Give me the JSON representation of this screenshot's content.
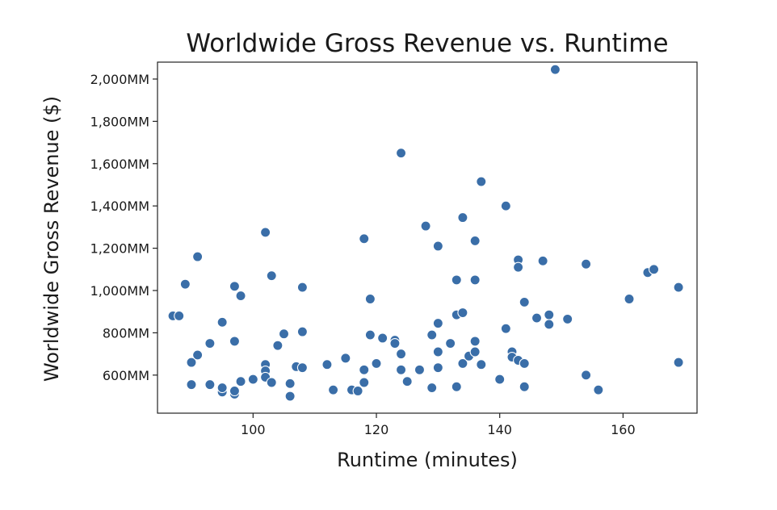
{
  "chart_data": {
    "type": "scatter",
    "title": "Worldwide Gross Revenue vs. Runtime",
    "xlabel": "Runtime (minutes)",
    "ylabel": "Worldwide Gross Revenue ($)",
    "xlim": [
      84.5,
      172
    ],
    "ylim": [
      420,
      2080
    ],
    "x_ticks": [
      {
        "value": 100,
        "label": "100"
      },
      {
        "value": 120,
        "label": "120"
      },
      {
        "value": 140,
        "label": "140"
      },
      {
        "value": 160,
        "label": "160"
      }
    ],
    "y_ticks": [
      {
        "value": 600,
        "label": "600MM"
      },
      {
        "value": 800,
        "label": "800MM"
      },
      {
        "value": 1000,
        "label": "1,000MM"
      },
      {
        "value": 1200,
        "label": "1,200MM"
      },
      {
        "value": 1400,
        "label": "1,400MM"
      },
      {
        "value": 1600,
        "label": "1,600MM"
      },
      {
        "value": 1800,
        "label": "1,800MM"
      },
      {
        "value": 2000,
        "label": "2,000MM"
      }
    ],
    "grid": false,
    "marker_color": "#3a6ea8",
    "points": [
      [
        87,
        880
      ],
      [
        88,
        880
      ],
      [
        89,
        1030
      ],
      [
        90,
        660
      ],
      [
        90,
        555
      ],
      [
        91,
        1160
      ],
      [
        91,
        695
      ],
      [
        93,
        555
      ],
      [
        93,
        750
      ],
      [
        95,
        520
      ],
      [
        95,
        850
      ],
      [
        95,
        540
      ],
      [
        97,
        1020
      ],
      [
        97,
        760
      ],
      [
        97,
        510
      ],
      [
        97,
        525
      ],
      [
        98,
        975
      ],
      [
        98,
        570
      ],
      [
        100,
        580
      ],
      [
        102,
        1275
      ],
      [
        102,
        650
      ],
      [
        102,
        620
      ],
      [
        102,
        590
      ],
      [
        103,
        1070
      ],
      [
        103,
        565
      ],
      [
        104,
        740
      ],
      [
        105,
        795
      ],
      [
        106,
        500
      ],
      [
        106,
        560
      ],
      [
        107,
        640
      ],
      [
        108,
        1015
      ],
      [
        108,
        805
      ],
      [
        108,
        635
      ],
      [
        112,
        650
      ],
      [
        113,
        530
      ],
      [
        115,
        680
      ],
      [
        116,
        530
      ],
      [
        117,
        525
      ],
      [
        118,
        1245
      ],
      [
        118,
        625
      ],
      [
        118,
        565
      ],
      [
        119,
        960
      ],
      [
        119,
        790
      ],
      [
        120,
        655
      ],
      [
        121,
        775
      ],
      [
        123,
        765
      ],
      [
        123,
        750
      ],
      [
        124,
        1650
      ],
      [
        124,
        700
      ],
      [
        124,
        625
      ],
      [
        125,
        570
      ],
      [
        127,
        625
      ],
      [
        128,
        1305
      ],
      [
        129,
        790
      ],
      [
        129,
        540
      ],
      [
        130,
        1210
      ],
      [
        130,
        845
      ],
      [
        130,
        710
      ],
      [
        130,
        635
      ],
      [
        132,
        750
      ],
      [
        133,
        1050
      ],
      [
        133,
        885
      ],
      [
        133,
        545
      ],
      [
        134,
        1345
      ],
      [
        134,
        895
      ],
      [
        134,
        655
      ],
      [
        135,
        690
      ],
      [
        136,
        1235
      ],
      [
        136,
        1050
      ],
      [
        136,
        760
      ],
      [
        136,
        710
      ],
      [
        137,
        1515
      ],
      [
        137,
        650
      ],
      [
        140,
        580
      ],
      [
        141,
        1400
      ],
      [
        141,
        820
      ],
      [
        142,
        710
      ],
      [
        142,
        685
      ],
      [
        143,
        1145
      ],
      [
        143,
        1110
      ],
      [
        143,
        670
      ],
      [
        144,
        945
      ],
      [
        144,
        655
      ],
      [
        144,
        545
      ],
      [
        146,
        870
      ],
      [
        147,
        1140
      ],
      [
        148,
        885
      ],
      [
        148,
        840
      ],
      [
        149,
        2045
      ],
      [
        151,
        865
      ],
      [
        154,
        1125
      ],
      [
        154,
        600
      ],
      [
        156,
        530
      ],
      [
        161,
        960
      ],
      [
        164,
        1085
      ],
      [
        165,
        1100
      ],
      [
        169,
        1015
      ],
      [
        169,
        660
      ]
    ]
  }
}
